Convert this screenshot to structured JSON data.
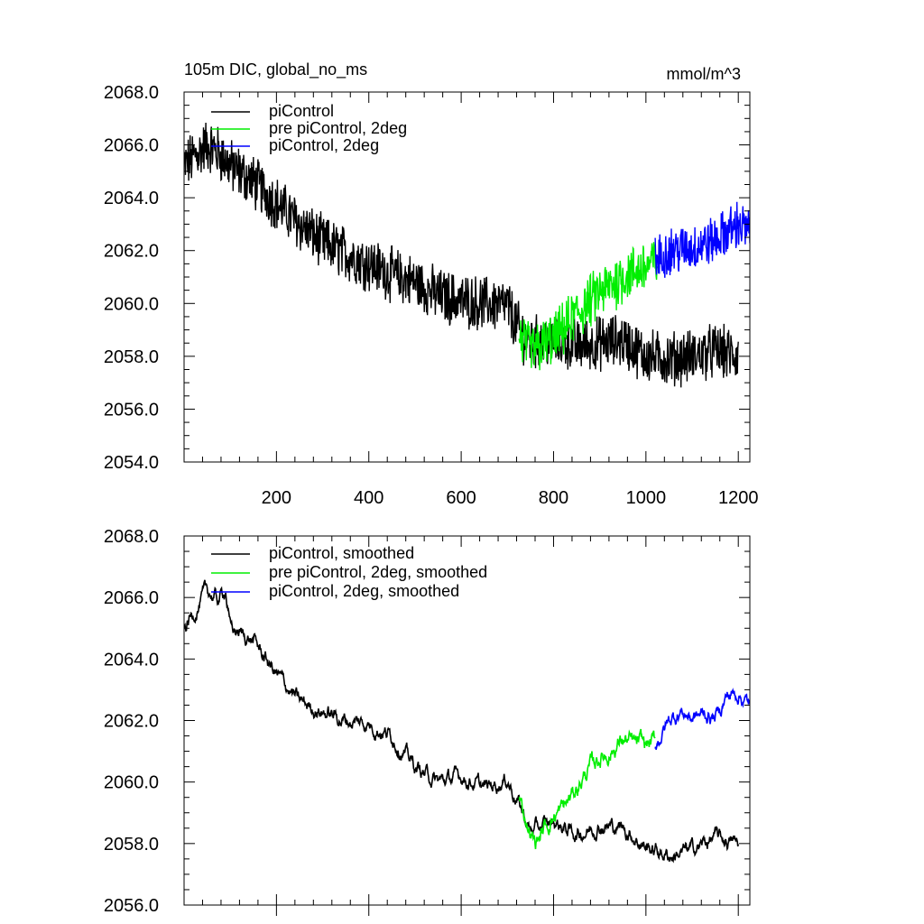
{
  "chart_data": [
    {
      "type": "line",
      "title": "105m DIC, global_no_ms",
      "units": "mmol/m^3",
      "xlim": [
        0,
        1225
      ],
      "ylim": [
        2054.0,
        2068.0
      ],
      "xticks": [
        200,
        400,
        600,
        800,
        1000,
        1200
      ],
      "yticks": [
        "2054.0",
        "2056.0",
        "2058.0",
        "2060.0",
        "2062.0",
        "2064.0",
        "2066.0",
        "2068.0"
      ],
      "grid": false,
      "legend_position": "top-left",
      "series": [
        {
          "name": "piControl",
          "color": "#000000",
          "x": [
            0,
            25,
            50,
            75,
            100,
            150,
            200,
            250,
            300,
            350,
            400,
            450,
            500,
            550,
            600,
            650,
            700,
            725,
            750,
            800,
            850,
            900,
            950,
            1000,
            1050,
            1100,
            1150,
            1200
          ],
          "y": [
            2065.2,
            2065.6,
            2066.0,
            2065.7,
            2065.2,
            2064.6,
            2063.8,
            2063.0,
            2062.3,
            2061.9,
            2061.5,
            2061.1,
            2060.8,
            2060.3,
            2060.1,
            2060.0,
            2059.9,
            2059.0,
            2058.5,
            2058.6,
            2058.4,
            2058.5,
            2058.6,
            2058.0,
            2057.9,
            2058.0,
            2058.2,
            2058.0
          ],
          "noise": 0.9
        },
        {
          "name": "pre piControl, 2deg",
          "color": "#00ee00",
          "x": [
            725,
            750,
            800,
            850,
            900,
            950,
            1000,
            1025
          ],
          "y": [
            2058.8,
            2058.2,
            2058.6,
            2059.6,
            2060.4,
            2061.0,
            2061.4,
            2061.6
          ],
          "noise": 0.9
        },
        {
          "name": "piControl, 2deg",
          "color": "#0000ff",
          "x": [
            1020,
            1050,
            1100,
            1150,
            1200,
            1225
          ],
          "y": [
            2061.6,
            2062.0,
            2062.1,
            2062.4,
            2063.0,
            2062.7
          ],
          "noise": 0.8
        }
      ]
    },
    {
      "type": "line",
      "title": "",
      "xlim": [
        0,
        1225
      ],
      "ylim": [
        2056.0,
        2068.0
      ],
      "yticks": [
        "2056.0",
        "2058.0",
        "2060.0",
        "2062.0",
        "2064.0",
        "2066.0",
        "2068.0"
      ],
      "grid": false,
      "legend_position": "top-left",
      "series": [
        {
          "name": "piControl, smoothed",
          "color": "#000000",
          "x": [
            0,
            25,
            50,
            75,
            90,
            100,
            150,
            200,
            250,
            300,
            350,
            400,
            450,
            500,
            550,
            600,
            650,
            700,
            725,
            750,
            800,
            850,
            900,
            950,
            1000,
            1050,
            1100,
            1150,
            1200
          ],
          "y": [
            2065.0,
            2065.6,
            2066.2,
            2065.9,
            2066.3,
            2065.0,
            2064.6,
            2063.5,
            2062.6,
            2062.3,
            2062.0,
            2061.9,
            2061.5,
            2060.5,
            2060.0,
            2060.2,
            2059.8,
            2060.1,
            2059.3,
            2058.4,
            2058.7,
            2058.3,
            2058.6,
            2058.5,
            2057.9,
            2057.6,
            2057.8,
            2058.2,
            2058.0
          ],
          "noise": 0.3
        },
        {
          "name": "pre piControl, 2deg, smoothed",
          "color": "#00ee00",
          "x": [
            725,
            740,
            760,
            780,
            800,
            825,
            850,
            875,
            900,
            925,
            950,
            975,
            1000,
            1020
          ],
          "y": [
            2059.4,
            2058.8,
            2058.0,
            2058.5,
            2058.9,
            2059.2,
            2059.8,
            2060.4,
            2060.8,
            2061.0,
            2061.4,
            2061.2,
            2061.2,
            2061.3
          ],
          "noise": 0.35
        },
        {
          "name": "piControl, 2deg, smoothed",
          "color": "#0000ff",
          "x": [
            1020,
            1050,
            1075,
            1100,
            1125,
            1150,
            1175,
            1200,
            1225
          ],
          "y": [
            2061.2,
            2062.0,
            2062.3,
            2062.1,
            2062.2,
            2062.1,
            2062.8,
            2062.9,
            2062.5
          ],
          "noise": 0.3
        }
      ]
    }
  ]
}
